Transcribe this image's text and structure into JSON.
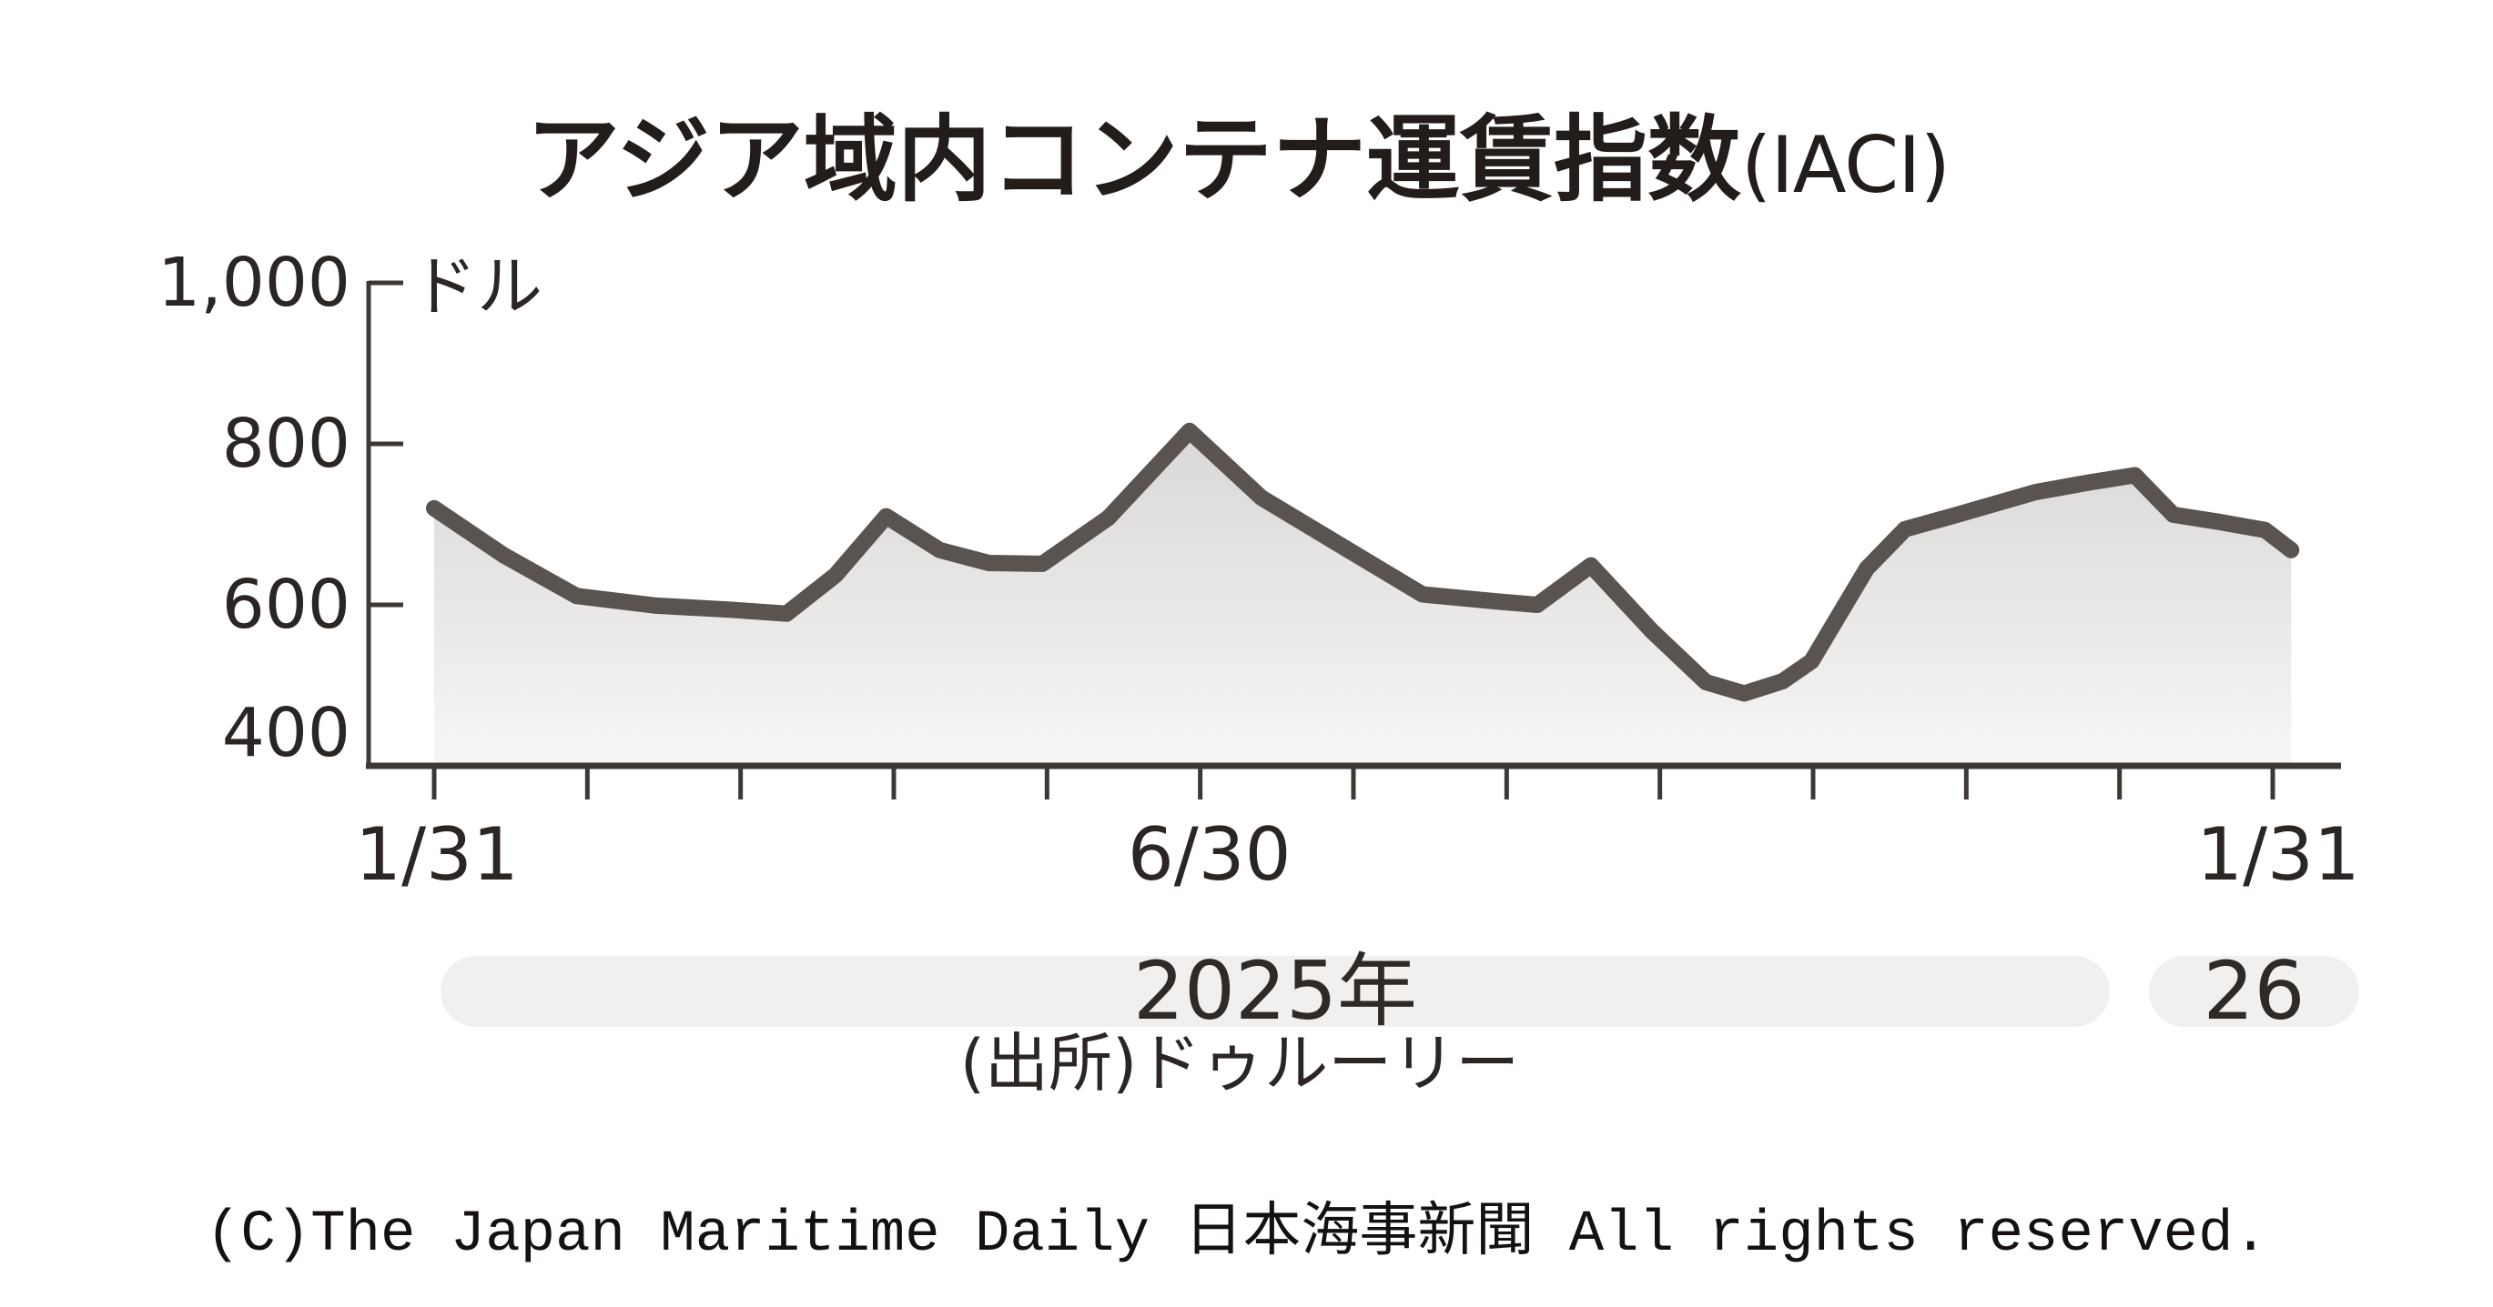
{
  "page": {
    "kind": "newspaper-chart-image",
    "background": "#ffffff"
  },
  "copyright": "(C)The Japan Maritime Daily 日本海事新聞 All rights reserved.",
  "colors": {
    "line": "#5a5450",
    "axis": "#3e3835",
    "text": "#2b2624",
    "title_text": "#221c1a",
    "area_top": "#d9d8d7",
    "area_bottom": "#f7f6f5",
    "year_pill": "#f1f0ee",
    "copyright_text": "#141110"
  },
  "chart_data": {
    "type": "area",
    "title": "アジア域内コンテナ運賃指数",
    "title_suffix": "(IACI)",
    "unit": "ドル",
    "source": "(出所)ドゥルーリー",
    "legend": "none",
    "grid": "off",
    "x_axis": {
      "description": "months from 2025-01-31 to 2026-01-31, monthly ticks",
      "months_span": 12,
      "tick_count": 13,
      "labels": [
        {
          "text": "1/31",
          "month": 0
        },
        {
          "text": "6/30",
          "month": 5
        },
        {
          "text": "1/31",
          "month": 12
        }
      ],
      "year_labels": [
        "2025年",
        "26"
      ]
    },
    "y_axis": {
      "min": 400,
      "max": 1000,
      "ticks": [
        {
          "label": "1,000",
          "value": 1000
        },
        {
          "label": "800",
          "value": 800
        },
        {
          "label": "600",
          "value": 600
        },
        {
          "label": "400",
          "value": 400
        }
      ]
    },
    "series": [
      {
        "name": "IACI",
        "x_unit": "months_after_2025_01_31",
        "points": [
          [
            0.0,
            720
          ],
          [
            0.45,
            662
          ],
          [
            0.93,
            611
          ],
          [
            1.45,
            599
          ],
          [
            1.93,
            594
          ],
          [
            2.3,
            589
          ],
          [
            2.62,
            637
          ],
          [
            2.95,
            710
          ],
          [
            3.3,
            668
          ],
          [
            3.62,
            652
          ],
          [
            3.97,
            651
          ],
          [
            4.4,
            708
          ],
          [
            4.93,
            816
          ],
          [
            5.4,
            733
          ],
          [
            5.95,
            670
          ],
          [
            6.45,
            613
          ],
          [
            6.95,
            604
          ],
          [
            7.2,
            600
          ],
          [
            7.55,
            649
          ],
          [
            7.95,
            567
          ],
          [
            8.3,
            504
          ],
          [
            8.55,
            490
          ],
          [
            8.8,
            505
          ],
          [
            8.99,
            530
          ],
          [
            9.35,
            645
          ],
          [
            9.6,
            694
          ],
          [
            9.94,
            712
          ],
          [
            10.45,
            740
          ],
          [
            10.8,
            752
          ],
          [
            11.1,
            761
          ],
          [
            11.35,
            712
          ],
          [
            11.65,
            703
          ],
          [
            11.95,
            693
          ],
          [
            12.12,
            668
          ]
        ]
      }
    ]
  }
}
